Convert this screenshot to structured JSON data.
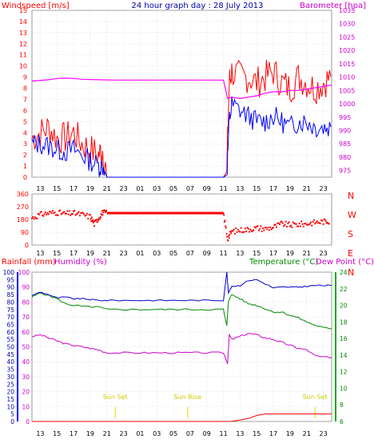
{
  "header": {
    "title": "24 hour graph day : 28 July 2013",
    "left_label": "Windspeed [m/s]",
    "right_label": "Barometer [hpa]"
  },
  "colors": {
    "windspeed": "#ff0000",
    "gust": "#ff0000",
    "windspeed_avg": "#0000ff",
    "barometer": "#ff00ff",
    "direction": "#ff0000",
    "rainfall": "#ff0000",
    "humidity": "#cc00cc",
    "temperature": "#0000cc",
    "dewpoint": "#008800",
    "sun_marker": "#dddd00",
    "axis_left": "#ff0000",
    "axis_right": "#cc00cc",
    "axis_green": "#008800",
    "axis_blue": "#0000cc",
    "grid": "#d0d0d0"
  },
  "time_ticks": [
    "13",
    "15",
    "17",
    "19",
    "21",
    "23",
    "01",
    "03",
    "05",
    "07",
    "09",
    "11",
    "13",
    "15",
    "17",
    "19",
    "21",
    "23"
  ],
  "chart_data": [
    {
      "type": "line",
      "name": "wind-barometer",
      "title": "24 hour graph day : 28 July 2013",
      "ylabel": "Windspeed [m/s]",
      "y2label": "Barometer [hpa]",
      "ylim": [
        0,
        15
      ],
      "y_ticks": [
        "0",
        "1",
        "2",
        "3",
        "4",
        "5",
        "6",
        "7",
        "8",
        "9",
        "10",
        "11",
        "12",
        "13",
        "14",
        "15"
      ],
      "y2lim": [
        972.5,
        1035
      ],
      "y2_ticks": [
        "975",
        "980",
        "985",
        "990",
        "995",
        "1000",
        "1005",
        "1010",
        "1015",
        "1020",
        "1025",
        "1030",
        "1035"
      ],
      "x": [
        12.0,
        13.0,
        14.0,
        15.0,
        16.0,
        17.0,
        18.0,
        19.0,
        20.0,
        20.5,
        21.0,
        23.0,
        25.0,
        27.0,
        29.0,
        31.0,
        33.0,
        35.0,
        35.4,
        35.7,
        36.0,
        37.0,
        38.0,
        39.0,
        40.0,
        41.0,
        42.0,
        43.0,
        44.0,
        45.0,
        46.0,
        47.0,
        47.9
      ],
      "series": [
        {
          "values": [
            3.5,
            4.0,
            4.5,
            3.5,
            3.5,
            4.0,
            3.0,
            2.5,
            2.0,
            2.5,
            0.0,
            0.0,
            0.0,
            0.0,
            0.0,
            0.0,
            0.0,
            0.0,
            0.5,
            8.5,
            9.5,
            9.0,
            9.0,
            8.5,
            9.0,
            9.5,
            8.5,
            8.0,
            9.0,
            8.5,
            8.0,
            8.5,
            9.0
          ]
        },
        {
          "values": [
            3.0,
            3.0,
            2.8,
            2.5,
            2.3,
            2.5,
            2.0,
            1.5,
            1.0,
            1.0,
            0.0,
            0.0,
            0.0,
            0.0,
            0.0,
            0.0,
            0.0,
            0.0,
            0.2,
            5.0,
            6.5,
            6.0,
            5.5,
            5.0,
            5.0,
            5.5,
            5.0,
            4.5,
            5.0,
            5.0,
            4.5,
            4.5,
            4.5
          ]
        }
      ],
      "barometer": {
        "x": [
          12.0,
          14.0,
          15.0,
          16.0,
          17.0,
          18.0,
          20.0,
          22.0,
          24.0,
          26.0,
          28.0,
          30.0,
          32.0,
          34.0,
          35.0,
          35.5,
          36.0,
          37.0,
          38.0,
          39.0,
          40.0,
          41.0,
          42.0,
          43.0,
          44.0,
          45.0,
          46.0,
          47.0,
          48.0
        ],
        "values": [
          1008.5,
          1009.0,
          1009.5,
          1009.6,
          1009.5,
          1009.2,
          1009.0,
          1008.9,
          1008.9,
          1008.9,
          1008.9,
          1008.9,
          1008.9,
          1008.9,
          1008.9,
          1002.0,
          1002.5,
          1002.0,
          1002.5,
          1003.0,
          1004.0,
          1004.5,
          1004.5,
          1005.0,
          1005.0,
          1005.5,
          1006.0,
          1006.5,
          1007.0
        ]
      }
    },
    {
      "type": "scatter",
      "name": "wind-direction",
      "ylim": [
        0,
        360
      ],
      "y_ticks": [
        "0",
        "90",
        "180",
        "270",
        "360"
      ],
      "direction_labels": [
        "N",
        "W",
        "S",
        "E",
        "N"
      ],
      "x": [
        12.0,
        13.0,
        14.0,
        15.0,
        16.0,
        17.0,
        18.0,
        19.0,
        19.5,
        20.0,
        20.5,
        21.0,
        23.0,
        25.0,
        27.0,
        29.0,
        31.0,
        33.0,
        35.0,
        35.5,
        36.0,
        37.0,
        38.0,
        39.0,
        40.0,
        41.0,
        42.0,
        43.0,
        44.0,
        45.0,
        46.0,
        47.0,
        47.8
      ],
      "values": [
        190,
        215,
        225,
        230,
        220,
        225,
        215,
        200,
        150,
        190,
        230,
        225,
        225,
        225,
        225,
        225,
        225,
        225,
        225,
        45,
        95,
        105,
        110,
        120,
        115,
        125,
        150,
        140,
        145,
        150,
        160,
        165,
        170
      ]
    },
    {
      "type": "line",
      "name": "temp-humidity-rain",
      "legend": [
        "Rainfall (mm)",
        "Humidity (%)",
        "Temperature (°C)",
        "Dew Point (°C)"
      ],
      "rain_lim": [
        0,
        100
      ],
      "rain_ticks": [
        "0",
        "5",
        "10",
        "15",
        "20",
        "25",
        "30",
        "35",
        "40",
        "45",
        "50",
        "55",
        "60",
        "65",
        "70",
        "75",
        "80",
        "85",
        "90",
        "95",
        "100"
      ],
      "humidity_lim": [
        0,
        100
      ],
      "humidity_ticks": [
        "0",
        "10",
        "20",
        "30",
        "40",
        "50",
        "60",
        "70",
        "80",
        "90",
        "100"
      ],
      "temp_lim": [
        6,
        24
      ],
      "temp_ticks": [
        "6",
        "8",
        "10",
        "12",
        "14",
        "16",
        "18",
        "20",
        "22",
        "24"
      ],
      "sun_events": [
        {
          "label": "Sun Set",
          "x": 22.0
        },
        {
          "label": "Sun Rise",
          "x": 30.7
        },
        {
          "label": "Sun Set",
          "x": 46.0
        }
      ],
      "humidity": {
        "x": [
          12.0,
          13.0,
          14.0,
          15.0,
          16.0,
          17.0,
          18.0,
          19.0,
          20.0,
          21.0,
          23.0,
          25.0,
          27.0,
          29.0,
          31.0,
          33.0,
          35.0,
          35.5,
          35.7,
          36.0,
          37.0,
          38.0,
          39.0,
          40.0,
          41.0,
          42.0,
          43.0,
          44.0,
          45.0,
          46.0,
          47.0,
          48.0
        ],
        "values": [
          57,
          58,
          56,
          54,
          52,
          51,
          50,
          49,
          48,
          46,
          46,
          46,
          46,
          46,
          46,
          46,
          46,
          39,
          58,
          55,
          57,
          59,
          58,
          56,
          55,
          53,
          51,
          49,
          48,
          44,
          43,
          43
        ]
      },
      "temperature": {
        "x": [
          12.0,
          13.0,
          14.0,
          15.0,
          16.0,
          17.0,
          18.0,
          19.0,
          20.0,
          21.0,
          23.0,
          25.0,
          27.0,
          29.0,
          31.0,
          33.0,
          35.0,
          35.4,
          35.6,
          36.0,
          37.0,
          38.0,
          39.0,
          40.0,
          41.0,
          42.0,
          43.0,
          44.0,
          45.0,
          46.0,
          47.0,
          48.0
        ],
        "values": [
          21.2,
          21.6,
          21.3,
          20.9,
          21.0,
          20.8,
          20.8,
          20.7,
          20.6,
          20.6,
          20.6,
          20.6,
          20.6,
          20.6,
          20.6,
          20.6,
          20.6,
          24.0,
          21.5,
          22.3,
          22.4,
          23.0,
          23.1,
          22.6,
          22.1,
          22.2,
          22.2,
          22.2,
          22.3,
          22.4,
          22.4,
          22.4
        ]
      },
      "dewpoint": {
        "x": [
          12.0,
          13.0,
          14.0,
          15.0,
          16.0,
          17.0,
          18.0,
          19.0,
          20.0,
          21.0,
          23.0,
          25.0,
          27.0,
          29.0,
          31.0,
          33.0,
          35.0,
          35.4,
          35.6,
          36.0,
          37.0,
          38.0,
          39.0,
          40.0,
          41.0,
          42.0,
          43.0,
          44.0,
          45.0,
          46.0,
          47.0,
          48.0
        ],
        "values": [
          21.0,
          21.5,
          21.2,
          20.8,
          20.2,
          20.0,
          19.9,
          19.8,
          19.8,
          19.5,
          19.5,
          19.5,
          19.5,
          19.5,
          19.5,
          19.5,
          19.5,
          17.5,
          20.5,
          21.3,
          20.8,
          20.2,
          20.0,
          19.6,
          19.2,
          19.2,
          18.8,
          18.5,
          18.0,
          17.6,
          17.3,
          17.2
        ]
      },
      "rainfall": {
        "x": [
          12.0,
          20.0,
          30.0,
          35.0,
          35.8,
          36.0,
          37.0,
          38.0,
          39.0,
          40.0,
          42.0,
          44.0,
          46.0,
          48.0
        ],
        "values": [
          0,
          0,
          0,
          0,
          0,
          0,
          1,
          2,
          4,
          5,
          5,
          5,
          5,
          5
        ]
      }
    }
  ]
}
